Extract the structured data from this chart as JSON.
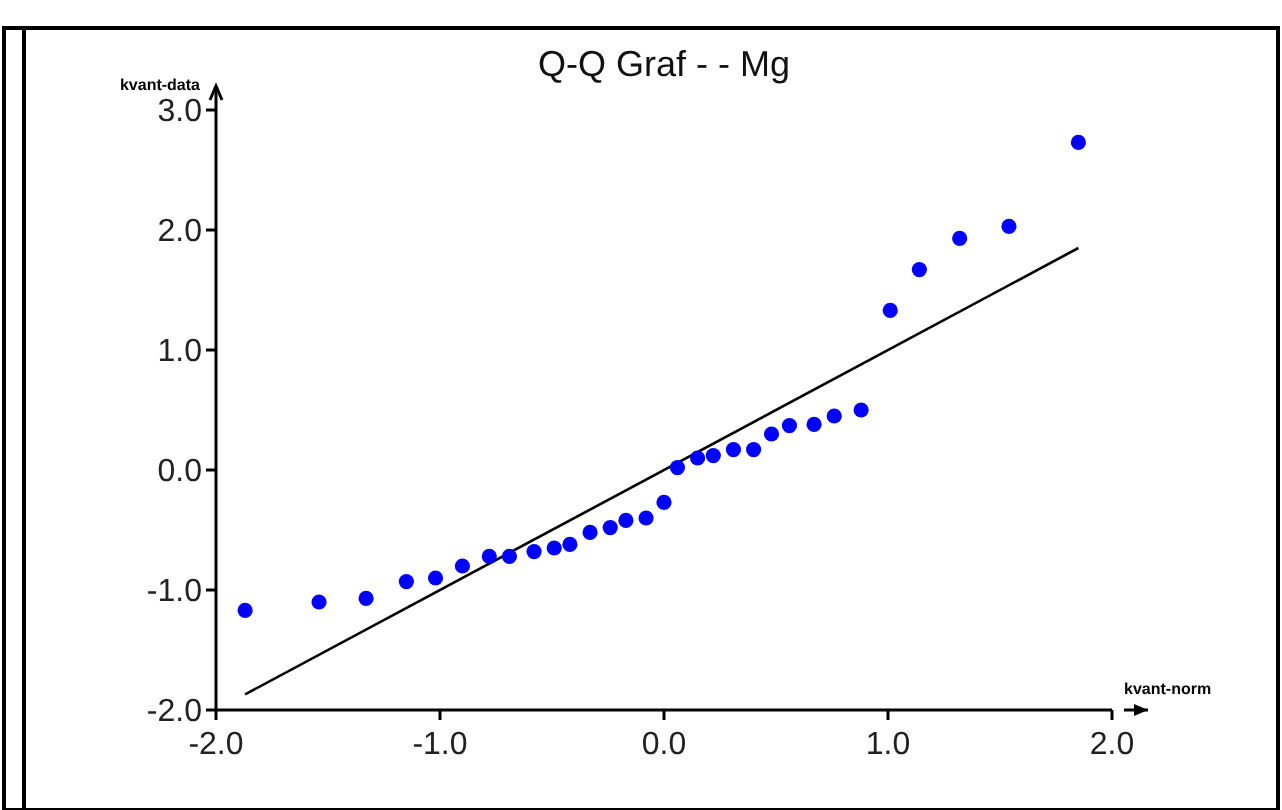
{
  "chart_data": {
    "type": "scatter",
    "title": "Q-Q Graf -  - Mg",
    "xlabel": "kvant-norm",
    "ylabel": "kvant-data",
    "xlim": [
      -2,
      2
    ],
    "ylim": [
      -2,
      3
    ],
    "xticks": [
      {
        "value": -2,
        "label": "-2.0"
      },
      {
        "value": -1,
        "label": "-1.0"
      },
      {
        "value": 0,
        "label": "0.0"
      },
      {
        "value": 1,
        "label": "1.0"
      },
      {
        "value": 2,
        "label": "2.0"
      }
    ],
    "yticks": [
      {
        "value": -2,
        "label": "-2.0"
      },
      {
        "value": -1,
        "label": "-1.0"
      },
      {
        "value": 0,
        "label": "0.0"
      },
      {
        "value": 1,
        "label": "1.0"
      },
      {
        "value": 2,
        "label": "2.0"
      },
      {
        "value": 3,
        "label": "3.0"
      }
    ],
    "grid": false,
    "series": [
      {
        "marker": "circle",
        "color": "#0000ff",
        "x": [
          -1.87,
          -1.54,
          -1.33,
          -1.15,
          -1.02,
          -0.9,
          -0.78,
          -0.69,
          -0.58,
          -0.49,
          -0.42,
          -0.33,
          -0.24,
          -0.17,
          -0.08,
          0.0,
          0.06,
          0.15,
          0.22,
          0.31,
          0.4,
          0.48,
          0.56,
          0.67,
          0.76,
          0.88,
          1.01,
          1.14,
          1.32,
          1.54,
          1.85
        ],
        "values": [
          -1.17,
          -1.1,
          -1.07,
          -0.93,
          -0.9,
          -0.8,
          -0.72,
          -0.72,
          -0.68,
          -0.65,
          -0.62,
          -0.52,
          -0.48,
          -0.42,
          -0.4,
          -0.27,
          0.02,
          0.1,
          0.12,
          0.17,
          0.17,
          0.3,
          0.37,
          0.38,
          0.45,
          0.5,
          1.33,
          1.67,
          1.93,
          2.03,
          2.73
        ]
      },
      {
        "type": "line",
        "color": "#000000",
        "x": [
          -1.87,
          1.85
        ],
        "values": [
          -1.87,
          1.85
        ]
      }
    ]
  }
}
